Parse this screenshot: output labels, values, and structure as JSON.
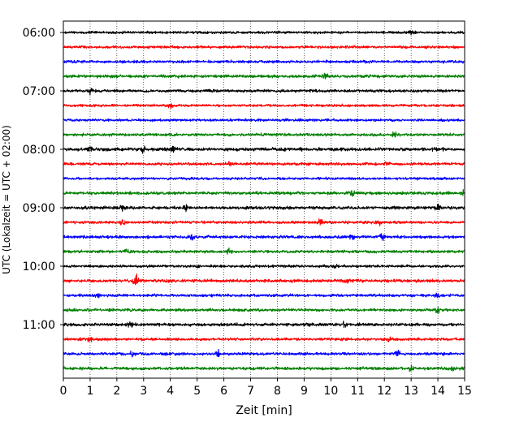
{
  "chart_data": {
    "type": "line",
    "title": "",
    "xlabel": "Zeit  [min]",
    "ylabel": "UTC (Lokalzeit = UTC + 02:00)",
    "xlim": [
      0,
      15
    ],
    "x_ticks": [
      0,
      1,
      2,
      3,
      4,
      5,
      6,
      7,
      8,
      9,
      10,
      11,
      12,
      13,
      14,
      15
    ],
    "x_tick_labels": [
      "0",
      "1",
      "2",
      "3",
      "4",
      "5",
      "6",
      "7",
      "8",
      "9",
      "10",
      "11",
      "12",
      "13",
      "14",
      "15"
    ],
    "y_tick_labels": [
      "06:00",
      "07:00",
      "08:00",
      "09:00",
      "10:00",
      "11:00"
    ],
    "y_tick_trace_index": [
      0,
      4,
      8,
      12,
      16,
      20
    ],
    "grid": {
      "x": true,
      "style": "dotted"
    },
    "color_cycle": [
      "#000000",
      "#ff0000",
      "#0000ff",
      "#008000"
    ],
    "series": [
      {
        "start": "06:00",
        "amplitude": 1.0,
        "events": [
          [
            13.0,
            1.5
          ]
        ]
      },
      {
        "start": "06:15",
        "amplitude": 1.0,
        "events": []
      },
      {
        "start": "06:30",
        "amplitude": 1.1,
        "events": []
      },
      {
        "start": "06:45",
        "amplitude": 1.2,
        "events": [
          [
            9.8,
            1.8
          ]
        ]
      },
      {
        "start": "07:00",
        "amplitude": 1.1,
        "events": [
          [
            1.0,
            1.8
          ]
        ]
      },
      {
        "start": "07:15",
        "amplitude": 1.0,
        "events": [
          [
            4.0,
            2.0
          ]
        ]
      },
      {
        "start": "07:30",
        "amplitude": 1.0,
        "events": []
      },
      {
        "start": "07:45",
        "amplitude": 1.1,
        "events": [
          [
            12.4,
            2.0
          ]
        ]
      },
      {
        "start": "08:00",
        "amplitude": 1.3,
        "events": [
          [
            1.0,
            2.2
          ],
          [
            3.0,
            2.6
          ],
          [
            4.1,
            2.2
          ]
        ]
      },
      {
        "start": "08:15",
        "amplitude": 1.1,
        "events": [
          [
            6.2,
            1.6
          ],
          [
            12.1,
            1.6
          ]
        ]
      },
      {
        "start": "08:30",
        "amplitude": 1.0,
        "events": []
      },
      {
        "start": "08:45",
        "amplitude": 1.2,
        "events": [
          [
            10.8,
            2.0
          ],
          [
            14.9,
            2.4
          ]
        ]
      },
      {
        "start": "09:00",
        "amplitude": 1.2,
        "events": [
          [
            2.2,
            1.8
          ],
          [
            4.6,
            2.2
          ],
          [
            14.0,
            2.4
          ]
        ]
      },
      {
        "start": "09:15",
        "amplitude": 1.1,
        "events": [
          [
            2.2,
            1.8
          ],
          [
            9.6,
            2.0
          ],
          [
            11.8,
            2.0
          ]
        ]
      },
      {
        "start": "09:30",
        "amplitude": 1.1,
        "events": [
          [
            4.8,
            3.0
          ],
          [
            10.8,
            3.2
          ],
          [
            11.9,
            3.2
          ]
        ]
      },
      {
        "start": "09:45",
        "amplitude": 1.1,
        "events": [
          [
            2.4,
            2.4
          ],
          [
            6.2,
            2.0
          ]
        ]
      },
      {
        "start": "10:00",
        "amplitude": 1.0,
        "events": [
          [
            5.0,
            1.8
          ],
          [
            10.2,
            1.8
          ]
        ]
      },
      {
        "start": "10:15",
        "amplitude": 1.2,
        "events": [
          [
            2.7,
            4.4
          ],
          [
            10.6,
            1.8
          ]
        ]
      },
      {
        "start": "10:30",
        "amplitude": 1.1,
        "events": [
          [
            1.3,
            1.8
          ],
          [
            14.0,
            2.0
          ]
        ]
      },
      {
        "start": "10:45",
        "amplitude": 1.1,
        "events": [
          [
            14.0,
            1.8
          ]
        ]
      },
      {
        "start": "11:00",
        "amplitude": 1.2,
        "events": [
          [
            2.5,
            2.0
          ],
          [
            10.5,
            1.8
          ]
        ]
      },
      {
        "start": "11:15",
        "amplitude": 1.1,
        "events": [
          [
            1.0,
            1.8
          ],
          [
            12.2,
            2.0
          ]
        ]
      },
      {
        "start": "11:30",
        "amplitude": 1.1,
        "events": [
          [
            2.6,
            2.2
          ],
          [
            5.8,
            2.6
          ],
          [
            12.5,
            2.2
          ]
        ]
      },
      {
        "start": "11:45",
        "amplitude": 1.2,
        "events": [
          [
            13.0,
            2.4
          ],
          [
            14.5,
            2.0
          ]
        ]
      }
    ]
  }
}
